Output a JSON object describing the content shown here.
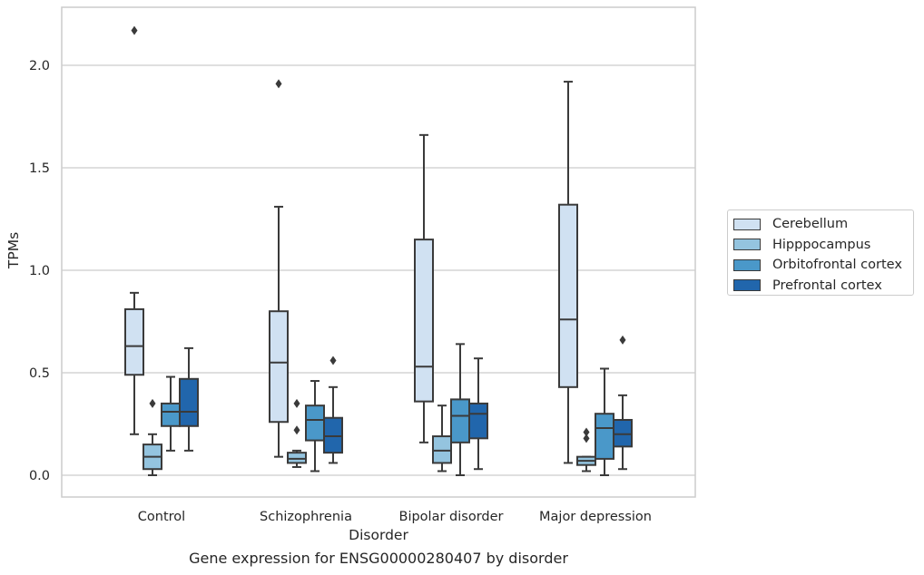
{
  "chart_data": {
    "type": "box",
    "title": "",
    "caption": "Gene expression for ENSG00000280407 by disorder",
    "xlabel": "Disorder",
    "ylabel": "TPMs",
    "ylim": [
      -0.1,
      2.28
    ],
    "yticks": [
      "0.0",
      "0.5",
      "1.0",
      "1.5",
      "2.0"
    ],
    "grid": true,
    "legend_position": "right",
    "categories": [
      "Control",
      "Schizophrenia",
      "Bipolar disorder",
      "Major depression"
    ],
    "series": [
      {
        "name": "Cerebellum",
        "color": "#d0e1f2",
        "boxes": [
          {
            "whisker_low": 0.2,
            "q1": 0.49,
            "median": 0.63,
            "q3": 0.81,
            "whisker_high": 0.89,
            "outliers": [
              2.17
            ]
          },
          {
            "whisker_low": 0.09,
            "q1": 0.26,
            "median": 0.55,
            "q3": 0.8,
            "whisker_high": 1.31,
            "outliers": [
              1.91
            ]
          },
          {
            "whisker_low": 0.16,
            "q1": 0.36,
            "median": 0.53,
            "q3": 1.15,
            "whisker_high": 1.66,
            "outliers": []
          },
          {
            "whisker_low": 0.06,
            "q1": 0.43,
            "median": 0.76,
            "q3": 1.32,
            "whisker_high": 1.92,
            "outliers": []
          }
        ]
      },
      {
        "name": "Hipppocampus",
        "color": "#94c4df",
        "boxes": [
          {
            "whisker_low": 0.0,
            "q1": 0.03,
            "median": 0.09,
            "q3": 0.15,
            "whisker_high": 0.2,
            "outliers": [
              0.35
            ]
          },
          {
            "whisker_low": 0.04,
            "q1": 0.06,
            "median": 0.08,
            "q3": 0.11,
            "whisker_high": 0.12,
            "outliers": [
              0.35,
              0.22
            ]
          },
          {
            "whisker_low": 0.02,
            "q1": 0.06,
            "median": 0.12,
            "q3": 0.19,
            "whisker_high": 0.34,
            "outliers": []
          },
          {
            "whisker_low": 0.02,
            "q1": 0.05,
            "median": 0.07,
            "q3": 0.09,
            "whisker_high": 0.09,
            "outliers": [
              0.21,
              0.18
            ]
          }
        ]
      },
      {
        "name": "Orbitofrontal cortex",
        "color": "#4a98c9",
        "boxes": [
          {
            "whisker_low": 0.12,
            "q1": 0.24,
            "median": 0.31,
            "q3": 0.35,
            "whisker_high": 0.48,
            "outliers": []
          },
          {
            "whisker_low": 0.02,
            "q1": 0.17,
            "median": 0.27,
            "q3": 0.34,
            "whisker_high": 0.46,
            "outliers": []
          },
          {
            "whisker_low": 0.0,
            "q1": 0.16,
            "median": 0.29,
            "q3": 0.37,
            "whisker_high": 0.64,
            "outliers": []
          },
          {
            "whisker_low": 0.0,
            "q1": 0.08,
            "median": 0.23,
            "q3": 0.3,
            "whisker_high": 0.52,
            "outliers": []
          }
        ]
      },
      {
        "name": "Prefrontal cortex",
        "color": "#2166ac",
        "boxes": [
          {
            "whisker_low": 0.12,
            "q1": 0.24,
            "median": 0.31,
            "q3": 0.47,
            "whisker_high": 0.62,
            "outliers": []
          },
          {
            "whisker_low": 0.06,
            "q1": 0.11,
            "median": 0.19,
            "q3": 0.28,
            "whisker_high": 0.43,
            "outliers": [
              0.56
            ]
          },
          {
            "whisker_low": 0.03,
            "q1": 0.18,
            "median": 0.3,
            "q3": 0.35,
            "whisker_high": 0.57,
            "outliers": []
          },
          {
            "whisker_low": 0.03,
            "q1": 0.14,
            "median": 0.2,
            "q3": 0.27,
            "whisker_high": 0.39,
            "outliers": [
              0.66
            ]
          }
        ]
      }
    ]
  }
}
